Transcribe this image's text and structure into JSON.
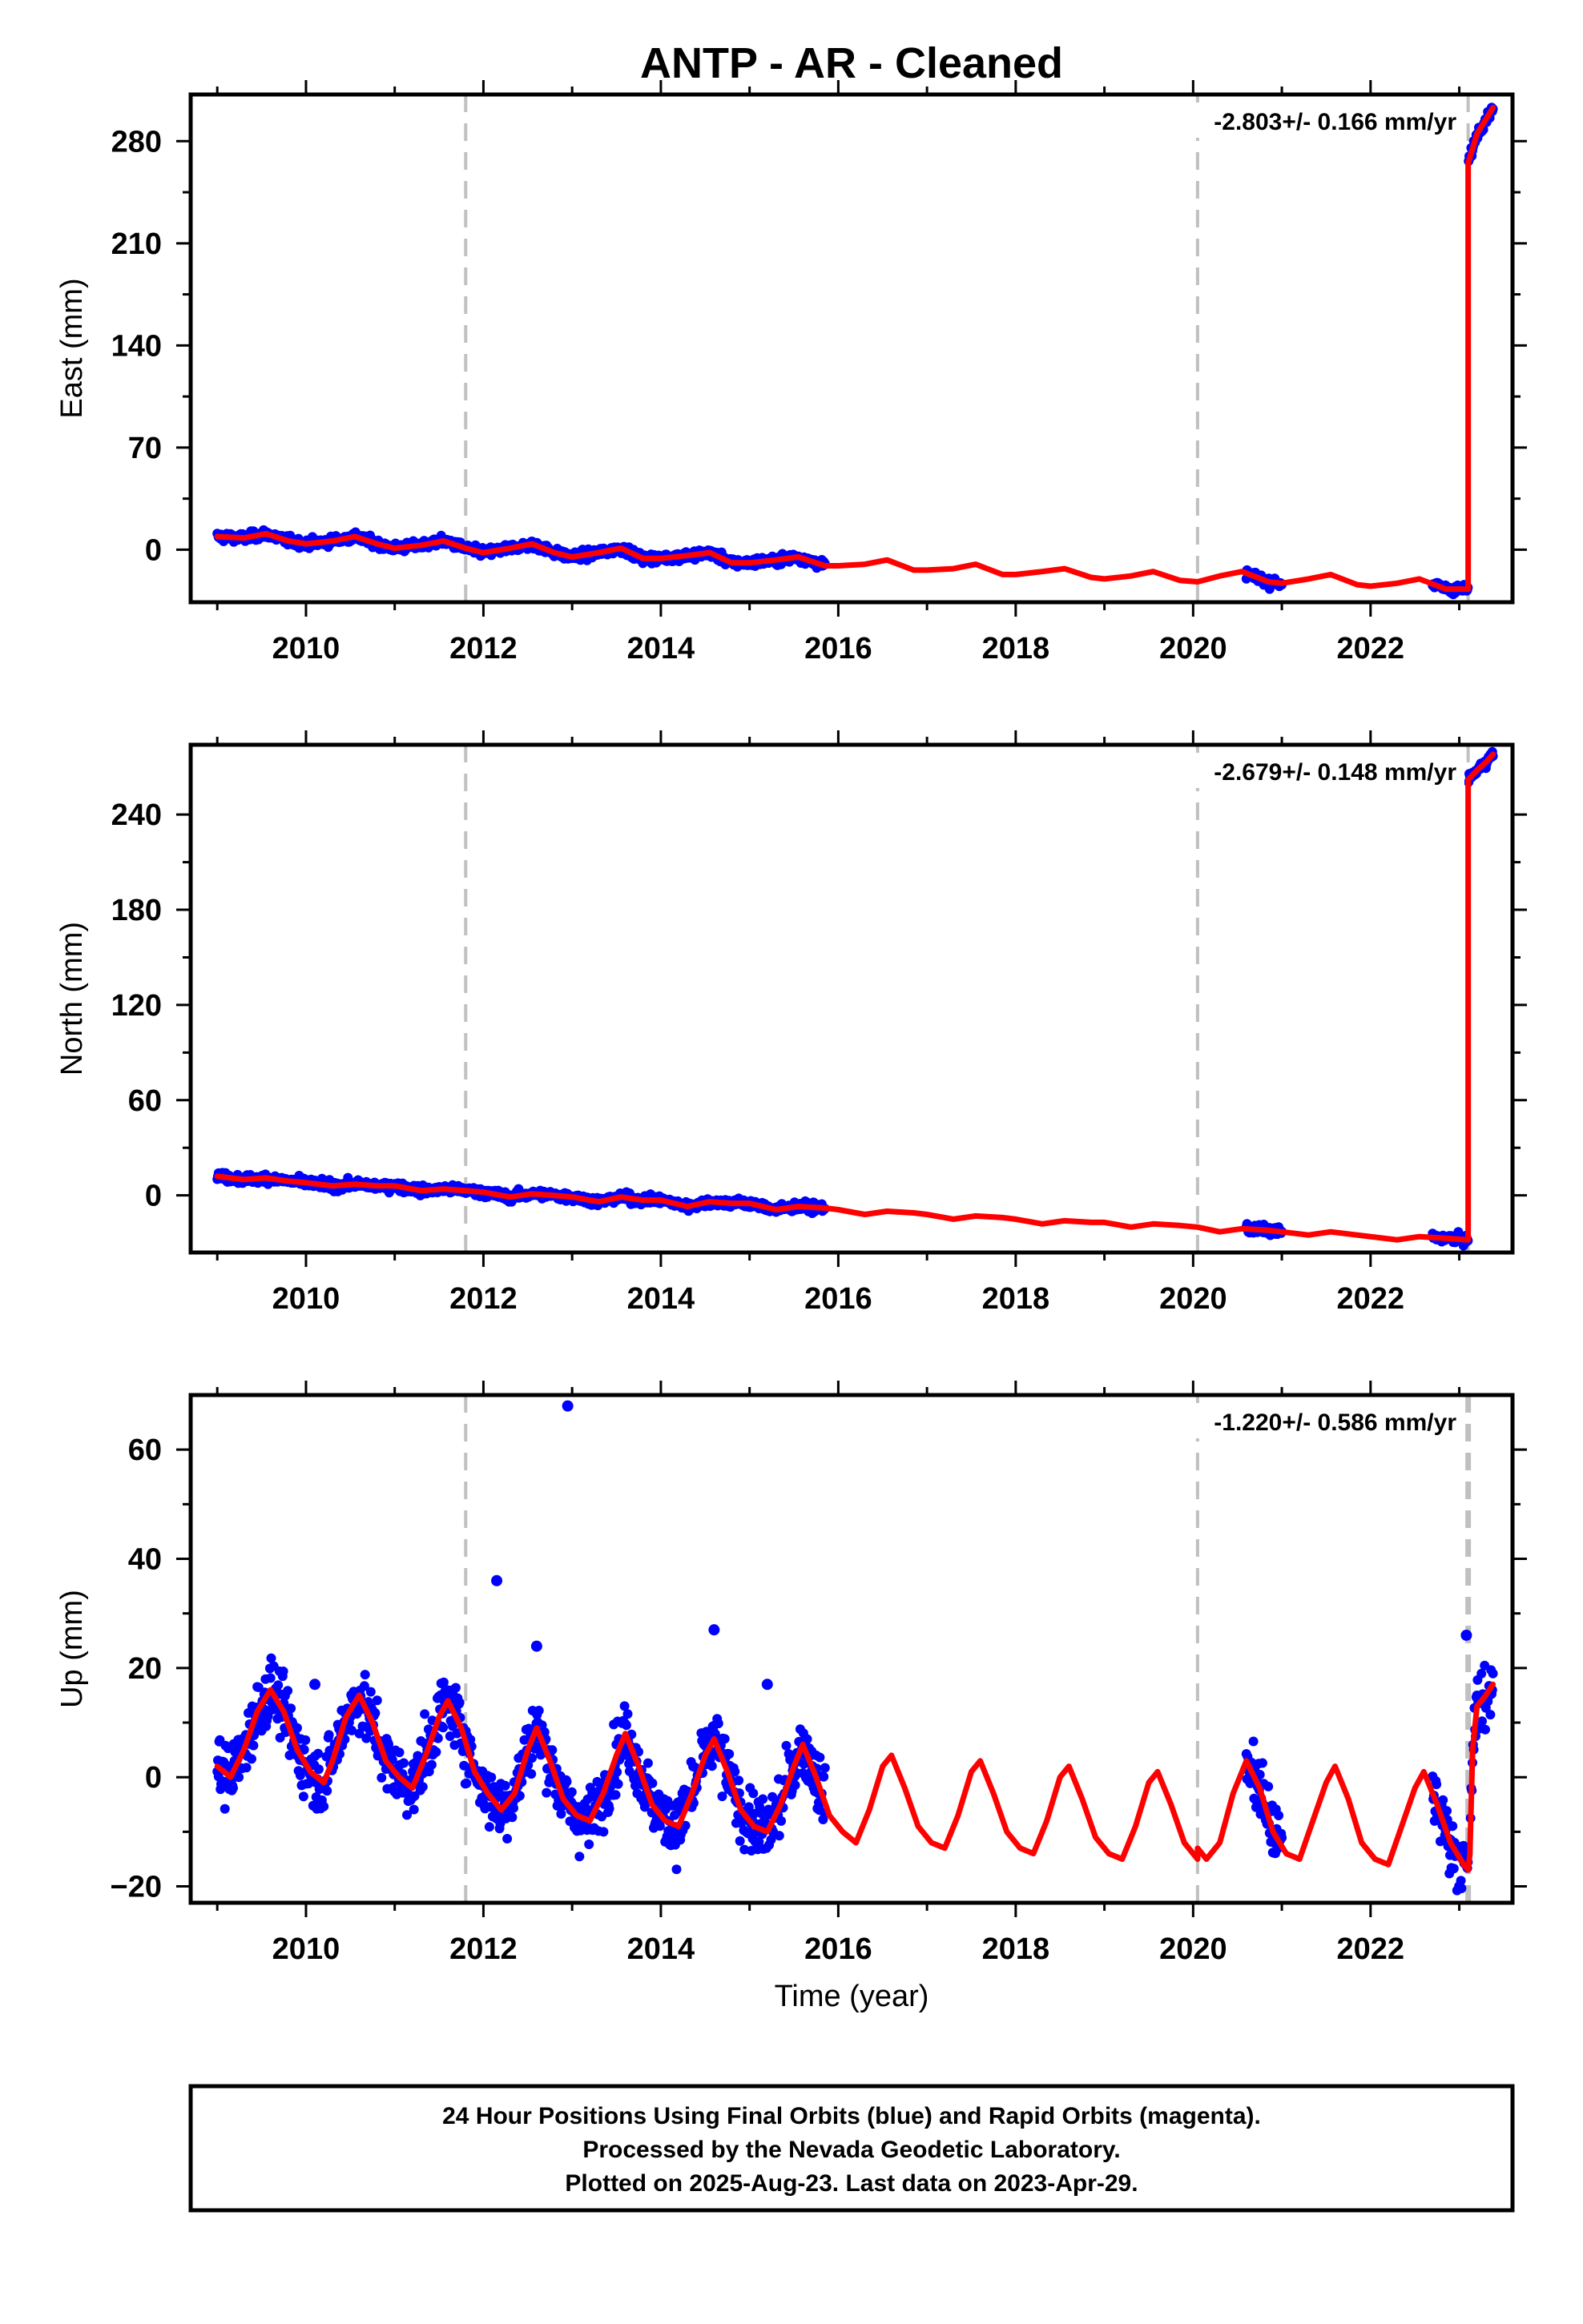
{
  "figure": {
    "title": "ANTP  - AR - Cleaned",
    "xlabel": "Time (year)",
    "footer": [
      "24 Hour Positions Using Final Orbits (blue) and Rapid Orbits (magenta).",
      "Processed by the Nevada Geodetic Laboratory.",
      "Plotted on 2025-Aug-23. Last data on 2023-Apr-29."
    ],
    "colors": {
      "data_points": "#0000ff",
      "model": "#ff0000",
      "event_lines": "#c0c0c0",
      "frame": "#000000"
    }
  },
  "chart_data": [
    {
      "type": "scatter",
      "component": "East",
      "ylabel": "East (mm)",
      "rate": "-2.803+/- 0.166 mm/yr",
      "xlim": [
        2008.7,
        2023.6
      ],
      "ylim": [
        -36,
        312
      ],
      "xticks": [
        2010,
        2012,
        2014,
        2016,
        2018,
        2020,
        2022
      ],
      "yticks": [
        0,
        70,
        140,
        210,
        280
      ],
      "event_lines": [
        2011.8,
        2020.05,
        2023.1
      ],
      "segments": [
        [
          [
            2009.0,
            9
          ],
          [
            2009.3,
            8
          ],
          [
            2009.55,
            11
          ],
          [
            2009.8,
            6
          ],
          [
            2010.0,
            4
          ],
          [
            2010.3,
            6
          ],
          [
            2010.55,
            9
          ],
          [
            2010.8,
            4
          ],
          [
            2011.0,
            1
          ],
          [
            2011.3,
            3
          ],
          [
            2011.55,
            6
          ],
          [
            2011.8,
            1
          ],
          [
            2012.0,
            -2
          ],
          [
            2012.3,
            1
          ],
          [
            2012.55,
            4
          ],
          [
            2012.8,
            -2
          ],
          [
            2013.0,
            -5
          ],
          [
            2013.3,
            -2
          ],
          [
            2013.55,
            1
          ],
          [
            2013.8,
            -6
          ],
          [
            2014.0,
            -6
          ],
          [
            2014.3,
            -4
          ],
          [
            2014.55,
            -2
          ],
          [
            2014.8,
            -9
          ],
          [
            2015.0,
            -9
          ],
          [
            2015.3,
            -7
          ],
          [
            2015.55,
            -5
          ],
          [
            2015.85,
            -11
          ],
          [
            2016.0,
            -11
          ],
          [
            2016.3,
            -10
          ],
          [
            2016.55,
            -7
          ],
          [
            2016.85,
            -14
          ],
          [
            2017.0,
            -14
          ],
          [
            2017.3,
            -13
          ],
          [
            2017.55,
            -10
          ],
          [
            2017.85,
            -17
          ],
          [
            2018.0,
            -17
          ],
          [
            2018.3,
            -15
          ],
          [
            2018.55,
            -13
          ],
          [
            2018.85,
            -19
          ],
          [
            2019.0,
            -20
          ],
          [
            2019.3,
            -18
          ],
          [
            2019.55,
            -15
          ],
          [
            2019.85,
            -21
          ],
          [
            2020.05,
            -22
          ],
          [
            2020.3,
            -18
          ],
          [
            2020.55,
            -15
          ],
          [
            2020.85,
            -22
          ],
          [
            2021.0,
            -23
          ],
          [
            2021.3,
            -20
          ],
          [
            2021.55,
            -17
          ],
          [
            2021.85,
            -24
          ],
          [
            2022.0,
            -25
          ],
          [
            2022.3,
            -23
          ],
          [
            2022.55,
            -20
          ],
          [
            2022.85,
            -27
          ],
          [
            2023.1,
            -27
          ]
        ],
        [
          [
            2023.1,
            265
          ],
          [
            2023.2,
            285
          ],
          [
            2023.3,
            295
          ],
          [
            2023.38,
            303
          ]
        ]
      ],
      "data_spans": [
        [
          2009.0,
          2015.85
        ],
        [
          2020.6,
          2021.0
        ],
        [
          2022.7,
          2023.38
        ]
      ],
      "spread": 2.2,
      "outliers": []
    },
    {
      "type": "scatter",
      "component": "North",
      "ylabel": "North (mm)",
      "rate": "-2.679+/- 0.148 mm/yr",
      "xlim": [
        2008.7,
        2023.6
      ],
      "ylim": [
        -36,
        284
      ],
      "xticks": [
        2010,
        2012,
        2014,
        2016,
        2018,
        2020,
        2022
      ],
      "yticks": [
        0,
        60,
        120,
        180,
        240
      ],
      "event_lines": [
        2011.8,
        2020.05,
        2023.1
      ],
      "segments": [
        [
          [
            2009.0,
            12
          ],
          [
            2009.3,
            10
          ],
          [
            2009.55,
            11
          ],
          [
            2009.8,
            9
          ],
          [
            2010.0,
            8
          ],
          [
            2010.3,
            6
          ],
          [
            2010.55,
            7
          ],
          [
            2010.8,
            6
          ],
          [
            2011.0,
            6
          ],
          [
            2011.3,
            3
          ],
          [
            2011.55,
            4
          ],
          [
            2011.8,
            3
          ],
          [
            2012.0,
            2
          ],
          [
            2012.3,
            -1
          ],
          [
            2012.55,
            1
          ],
          [
            2012.8,
            0
          ],
          [
            2013.0,
            -1
          ],
          [
            2013.3,
            -4
          ],
          [
            2013.55,
            -1
          ],
          [
            2013.8,
            -3
          ],
          [
            2014.0,
            -3
          ],
          [
            2014.3,
            -7
          ],
          [
            2014.55,
            -4
          ],
          [
            2014.8,
            -5
          ],
          [
            2015.0,
            -5
          ],
          [
            2015.3,
            -9
          ],
          [
            2015.55,
            -7
          ],
          [
            2015.85,
            -8
          ],
          [
            2016.0,
            -9
          ],
          [
            2016.3,
            -12
          ],
          [
            2016.55,
            -10
          ],
          [
            2016.85,
            -11
          ],
          [
            2017.0,
            -12
          ],
          [
            2017.3,
            -15
          ],
          [
            2017.55,
            -13
          ],
          [
            2017.85,
            -14
          ],
          [
            2018.0,
            -15
          ],
          [
            2018.3,
            -18
          ],
          [
            2018.55,
            -16
          ],
          [
            2018.85,
            -17
          ],
          [
            2019.0,
            -17
          ],
          [
            2019.3,
            -20
          ],
          [
            2019.55,
            -18
          ],
          [
            2019.85,
            -19
          ],
          [
            2020.05,
            -20
          ],
          [
            2020.3,
            -23
          ],
          [
            2020.55,
            -21
          ],
          [
            2020.85,
            -22
          ],
          [
            2021.0,
            -23
          ],
          [
            2021.3,
            -25
          ],
          [
            2021.55,
            -23
          ],
          [
            2021.85,
            -25
          ],
          [
            2022.0,
            -26
          ],
          [
            2022.3,
            -28
          ],
          [
            2022.55,
            -26
          ],
          [
            2022.85,
            -27
          ],
          [
            2023.1,
            -28
          ]
        ],
        [
          [
            2023.1,
            262
          ],
          [
            2023.2,
            268
          ],
          [
            2023.3,
            273
          ],
          [
            2023.38,
            278
          ]
        ]
      ],
      "data_spans": [
        [
          2009.0,
          2015.85
        ],
        [
          2020.6,
          2021.0
        ],
        [
          2022.7,
          2023.38
        ]
      ],
      "spread": 2.0,
      "outliers": []
    },
    {
      "type": "scatter",
      "component": "Up",
      "ylabel": "Up (mm)",
      "rate": "-1.220+/- 0.586 mm/yr",
      "xlim": [
        2008.7,
        2023.6
      ],
      "ylim": [
        -23,
        70
      ],
      "xticks": [
        2010,
        2012,
        2014,
        2016,
        2018,
        2020,
        2022
      ],
      "yticks": [
        -20,
        0,
        20,
        40,
        60
      ],
      "event_lines": [
        2011.8,
        2020.05,
        2023.1
      ],
      "segments": [
        [
          [
            2009.0,
            2
          ],
          [
            2009.15,
            0
          ],
          [
            2009.3,
            5
          ],
          [
            2009.45,
            12
          ],
          [
            2009.6,
            16
          ],
          [
            2009.75,
            12
          ],
          [
            2009.9,
            5
          ],
          [
            2010.05,
            1
          ],
          [
            2010.2,
            -1
          ],
          [
            2010.3,
            3
          ],
          [
            2010.45,
            11
          ],
          [
            2010.6,
            15
          ],
          [
            2010.75,
            10
          ],
          [
            2010.9,
            3
          ],
          [
            2011.05,
            0
          ],
          [
            2011.2,
            -2
          ],
          [
            2011.35,
            4
          ],
          [
            2011.5,
            11
          ],
          [
            2011.6,
            14
          ],
          [
            2011.75,
            9
          ],
          [
            2011.9,
            1
          ],
          [
            2012.05,
            -3
          ],
          [
            2012.2,
            -6
          ],
          [
            2012.35,
            -3
          ],
          [
            2012.5,
            5
          ],
          [
            2012.6,
            9
          ],
          [
            2012.75,
            3
          ],
          [
            2012.9,
            -4
          ],
          [
            2013.05,
            -7
          ],
          [
            2013.2,
            -8
          ],
          [
            2013.35,
            -3
          ],
          [
            2013.5,
            4
          ],
          [
            2013.6,
            8
          ],
          [
            2013.75,
            2
          ],
          [
            2013.9,
            -5
          ],
          [
            2014.05,
            -8
          ],
          [
            2014.2,
            -9
          ],
          [
            2014.35,
            -3
          ],
          [
            2014.5,
            4
          ],
          [
            2014.6,
            7
          ],
          [
            2014.75,
            1
          ],
          [
            2014.9,
            -6
          ],
          [
            2015.05,
            -9
          ],
          [
            2015.2,
            -10
          ],
          [
            2015.35,
            -5
          ],
          [
            2015.5,
            2
          ],
          [
            2015.6,
            6
          ],
          [
            2015.75,
            0
          ],
          [
            2015.9,
            -7
          ],
          [
            2016.05,
            -10
          ],
          [
            2016.2,
            -12
          ],
          [
            2016.35,
            -6
          ],
          [
            2016.5,
            2
          ],
          [
            2016.6,
            4
          ],
          [
            2016.75,
            -2
          ],
          [
            2016.9,
            -9
          ],
          [
            2017.05,
            -12
          ],
          [
            2017.2,
            -13
          ],
          [
            2017.35,
            -7
          ],
          [
            2017.5,
            1
          ],
          [
            2017.6,
            3
          ],
          [
            2017.75,
            -3
          ],
          [
            2017.9,
            -10
          ],
          [
            2018.05,
            -13
          ],
          [
            2018.2,
            -14
          ],
          [
            2018.35,
            -8
          ],
          [
            2018.5,
            0
          ],
          [
            2018.6,
            2
          ],
          [
            2018.75,
            -4
          ],
          [
            2018.9,
            -11
          ],
          [
            2019.05,
            -14
          ],
          [
            2019.2,
            -15
          ],
          [
            2019.35,
            -9
          ],
          [
            2019.5,
            -1
          ],
          [
            2019.6,
            1
          ],
          [
            2019.75,
            -5
          ],
          [
            2019.9,
            -12
          ],
          [
            2020.05,
            -15
          ]
        ],
        [
          [
            2020.05,
            -13
          ],
          [
            2020.15,
            -15
          ],
          [
            2020.3,
            -12
          ],
          [
            2020.45,
            -3
          ],
          [
            2020.6,
            3
          ],
          [
            2020.75,
            -2
          ],
          [
            2020.9,
            -10
          ],
          [
            2021.05,
            -14
          ],
          [
            2021.2,
            -15
          ],
          [
            2021.35,
            -8
          ],
          [
            2021.5,
            -1
          ],
          [
            2021.6,
            2
          ],
          [
            2021.75,
            -4
          ],
          [
            2021.9,
            -12
          ],
          [
            2022.05,
            -15
          ],
          [
            2022.2,
            -16
          ],
          [
            2022.35,
            -9
          ],
          [
            2022.5,
            -2
          ],
          [
            2022.6,
            1
          ],
          [
            2022.75,
            -5
          ],
          [
            2022.9,
            -12
          ],
          [
            2023.05,
            -16
          ],
          [
            2023.1,
            -17
          ]
        ],
        [
          [
            2023.12,
            -14
          ],
          [
            2023.15,
            5
          ],
          [
            2023.2,
            13
          ],
          [
            2023.3,
            15
          ],
          [
            2023.38,
            17
          ]
        ]
      ],
      "data_spans": [
        [
          2009.0,
          2015.85
        ],
        [
          2020.6,
          2021.0
        ],
        [
          2022.7,
          2023.38
        ]
      ],
      "spread": 4.0,
      "outliers": [
        [
          2012.95,
          68
        ],
        [
          2012.15,
          36
        ],
        [
          2014.6,
          27
        ],
        [
          2012.6,
          24
        ],
        [
          2023.08,
          26
        ],
        [
          2010.1,
          17
        ],
        [
          2015.2,
          17
        ]
      ]
    }
  ]
}
